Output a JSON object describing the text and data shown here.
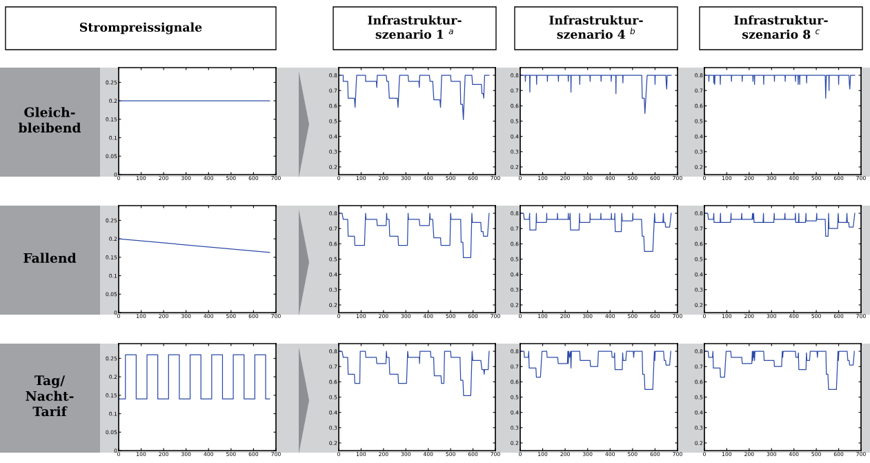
{
  "chart_data": [
    {
      "type": "line",
      "title": "Strompreissignale",
      "ylabel": "Gleich-\nbleibend",
      "xlim": [
        0,
        700
      ],
      "ylim": [
        0,
        0.29
      ],
      "xticks": [
        0,
        100,
        200,
        300,
        400,
        500,
        600,
        700
      ],
      "yticks": [
        0,
        0.05,
        0.1,
        0.15,
        0.2,
        0.25
      ],
      "grid": false,
      "series": [
        {
          "color": "#2b4aa8",
          "x": [
            0,
            672
          ],
          "values": [
            0.2,
            0.2
          ]
        }
      ]
    },
    {
      "type": "line",
      "title": "Infrastruktur-\nszenario 1 $^{a}$",
      "xlim": [
        0,
        700
      ],
      "ylim": [
        0.15,
        0.85
      ],
      "xticks": [
        0,
        100,
        200,
        300,
        400,
        500,
        600,
        700
      ],
      "yticks": [
        0.2,
        0.3,
        0.4,
        0.5,
        0.6,
        0.7,
        0.8
      ],
      "grid": false,
      "series": [
        {
          "color": "#2b4aa8",
          "x": [
            0,
            20,
            20,
            40,
            42,
            70,
            73,
            80,
            120,
            120,
            168,
            170,
            172,
            212,
            215,
            222,
            226,
            262,
            265,
            272,
            310,
            312,
            358,
            360,
            362,
            405,
            408,
            420,
            425,
            452,
            455,
            460,
            500,
            502,
            543,
            545,
            553,
            557,
            565,
            595,
            598,
            638,
            640,
            646,
            648,
            652,
            672
          ],
          "values": [
            0.8,
            0.8,
            0.76,
            0.76,
            0.65,
            0.65,
            0.59,
            0.8,
            0.8,
            0.76,
            0.76,
            0.72,
            0.8,
            0.8,
            0.76,
            0.76,
            0.65,
            0.65,
            0.59,
            0.8,
            0.8,
            0.76,
            0.76,
            0.72,
            0.8,
            0.8,
            0.76,
            0.76,
            0.64,
            0.64,
            0.59,
            0.8,
            0.8,
            0.76,
            0.76,
            0.61,
            0.61,
            0.51,
            0.8,
            0.8,
            0.74,
            0.74,
            0.68,
            0.68,
            0.65,
            0.8,
            0.8
          ]
        }
      ]
    },
    {
      "type": "line",
      "title": "Infrastruktur-\nszenario 4 $^{b}$",
      "xlim": [
        0,
        700
      ],
      "ylim": [
        0.15,
        0.85
      ],
      "xticks": [
        0,
        100,
        200,
        300,
        400,
        500,
        600,
        700
      ],
      "yticks": [
        0.2,
        0.3,
        0.4,
        0.5,
        0.6,
        0.7,
        0.8
      ],
      "grid": false,
      "series": [
        {
          "color": "#2b4aa8",
          "x": [
            0,
            22,
            23,
            24,
            42,
            43,
            44,
            72,
            73,
            74,
            120,
            121,
            122,
            169,
            170,
            171,
            213,
            214,
            215,
            225,
            226,
            227,
            264,
            265,
            266,
            310,
            311,
            312,
            359,
            360,
            361,
            404,
            405,
            406,
            425,
            426,
            427,
            456,
            457,
            458,
            541,
            543,
            552,
            555,
            565,
            599,
            600,
            601,
            648,
            650,
            652,
            654,
            672
          ],
          "values": [
            0.8,
            0.8,
            0.76,
            0.8,
            0.8,
            0.69,
            0.8,
            0.8,
            0.74,
            0.8,
            0.8,
            0.76,
            0.8,
            0.8,
            0.76,
            0.8,
            0.8,
            0.76,
            0.8,
            0.8,
            0.69,
            0.8,
            0.8,
            0.74,
            0.8,
            0.8,
            0.76,
            0.8,
            0.8,
            0.76,
            0.8,
            0.8,
            0.76,
            0.8,
            0.8,
            0.68,
            0.8,
            0.8,
            0.75,
            0.8,
            0.8,
            0.65,
            0.65,
            0.55,
            0.8,
            0.8,
            0.74,
            0.8,
            0.8,
            0.74,
            0.71,
            0.8,
            0.8
          ]
        }
      ]
    },
    {
      "type": "line",
      "title": "Infrastruktur-\nszenario 8 $^{c}$",
      "xlim": [
        0,
        700
      ],
      "ylim": [
        0.15,
        0.85
      ],
      "xticks": [
        0,
        100,
        200,
        300,
        400,
        500,
        600,
        700
      ],
      "yticks": [
        0.2,
        0.3,
        0.4,
        0.5,
        0.6,
        0.7,
        0.8
      ],
      "grid": false,
      "series": [
        {
          "color": "#2b4aa8",
          "x": [
            0,
            19,
            20,
            21,
            41,
            42,
            44,
            46,
            47,
            70,
            71,
            72,
            120,
            121,
            122,
            168,
            169,
            170,
            216,
            217,
            218,
            223,
            224,
            225,
            264,
            265,
            266,
            312,
            313,
            314,
            360,
            361,
            362,
            406,
            407,
            408,
            418,
            419,
            420,
            425,
            426,
            427,
            456,
            457,
            458,
            540,
            542,
            545,
            556,
            557,
            558,
            599,
            600,
            601,
            646,
            648,
            650,
            653,
            672
          ],
          "values": [
            0.8,
            0.8,
            0.76,
            0.8,
            0.8,
            0.75,
            0.8,
            0.74,
            0.8,
            0.8,
            0.74,
            0.8,
            0.8,
            0.76,
            0.8,
            0.8,
            0.76,
            0.8,
            0.8,
            0.76,
            0.8,
            0.8,
            0.74,
            0.8,
            0.8,
            0.74,
            0.8,
            0.8,
            0.76,
            0.8,
            0.8,
            0.76,
            0.8,
            0.8,
            0.76,
            0.8,
            0.8,
            0.74,
            0.8,
            0.8,
            0.74,
            0.8,
            0.8,
            0.75,
            0.8,
            0.8,
            0.65,
            0.8,
            0.8,
            0.7,
            0.8,
            0.8,
            0.74,
            0.8,
            0.8,
            0.74,
            0.71,
            0.8,
            0.8
          ]
        }
      ]
    },
    {
      "type": "line",
      "ylabel": "Fallend",
      "xlim": [
        0,
        700
      ],
      "ylim": [
        0,
        0.29
      ],
      "xticks": [
        0,
        100,
        200,
        300,
        400,
        500,
        600,
        700
      ],
      "yticks": [
        0,
        0.05,
        0.1,
        0.15,
        0.2,
        0.25
      ],
      "grid": false,
      "series": [
        {
          "color": "#2b4aa8",
          "x": [
            0,
            672
          ],
          "values": [
            0.2,
            0.163
          ]
        }
      ]
    },
    {
      "type": "line",
      "xlim": [
        0,
        700
      ],
      "ylim": [
        0.15,
        0.85
      ],
      "xticks": [
        0,
        100,
        200,
        300,
        400,
        500,
        600,
        700
      ],
      "yticks": [
        0.2,
        0.3,
        0.4,
        0.5,
        0.6,
        0.7,
        0.8
      ],
      "grid": false,
      "series": [
        {
          "color": "#2b4aa8",
          "x": [
            0,
            15,
            20,
            40,
            42,
            70,
            72,
            115,
            120,
            122,
            170,
            172,
            212,
            214,
            216,
            225,
            228,
            265,
            267,
            307,
            310,
            312,
            360,
            362,
            405,
            407,
            409,
            420,
            425,
            455,
            457,
            497,
            500,
            502,
            545,
            547,
            555,
            557,
            590,
            595,
            597,
            635,
            637,
            645,
            647,
            665,
            672
          ],
          "values": [
            0.8,
            0.8,
            0.76,
            0.76,
            0.65,
            0.65,
            0.59,
            0.59,
            0.8,
            0.76,
            0.76,
            0.72,
            0.72,
            0.8,
            0.76,
            0.76,
            0.65,
            0.65,
            0.59,
            0.59,
            0.8,
            0.76,
            0.76,
            0.72,
            0.72,
            0.8,
            0.76,
            0.76,
            0.64,
            0.64,
            0.59,
            0.59,
            0.8,
            0.76,
            0.76,
            0.61,
            0.61,
            0.51,
            0.51,
            0.8,
            0.74,
            0.74,
            0.68,
            0.68,
            0.65,
            0.65,
            0.8
          ]
        }
      ]
    },
    {
      "type": "line",
      "xlim": [
        0,
        700
      ],
      "ylim": [
        0.15,
        0.85
      ],
      "xticks": [
        0,
        100,
        200,
        300,
        400,
        500,
        600,
        700
      ],
      "yticks": [
        0.2,
        0.3,
        0.4,
        0.5,
        0.6,
        0.7,
        0.8
      ],
      "grid": false,
      "series": [
        {
          "color": "#2b4aa8",
          "x": [
            0,
            15,
            18,
            40,
            42,
            43,
            70,
            72,
            73,
            117,
            118,
            119,
            165,
            166,
            167,
            213,
            214,
            215,
            220,
            222,
            224,
            262,
            264,
            265,
            310,
            311,
            312,
            358,
            359,
            360,
            405,
            406,
            407,
            420,
            421,
            423,
            450,
            452,
            454,
            500,
            501,
            502,
            540,
            543,
            550,
            553,
            590,
            598,
            600,
            635,
            637,
            639,
            645,
            647,
            665,
            672
          ],
          "values": [
            0.8,
            0.8,
            0.76,
            0.76,
            0.8,
            0.69,
            0.69,
            0.8,
            0.74,
            0.74,
            0.8,
            0.76,
            0.76,
            0.8,
            0.76,
            0.76,
            0.8,
            0.76,
            0.76,
            0.8,
            0.69,
            0.69,
            0.8,
            0.74,
            0.74,
            0.8,
            0.76,
            0.76,
            0.8,
            0.76,
            0.76,
            0.8,
            0.76,
            0.76,
            0.8,
            0.68,
            0.68,
            0.8,
            0.75,
            0.75,
            0.8,
            0.76,
            0.76,
            0.65,
            0.65,
            0.55,
            0.55,
            0.8,
            0.74,
            0.74,
            0.8,
            0.74,
            0.74,
            0.71,
            0.71,
            0.8
          ]
        }
      ]
    },
    {
      "type": "line",
      "xlim": [
        0,
        700
      ],
      "ylim": [
        0.15,
        0.85
      ],
      "xticks": [
        0,
        100,
        200,
        300,
        400,
        500,
        600,
        700
      ],
      "yticks": [
        0.2,
        0.3,
        0.4,
        0.5,
        0.6,
        0.7,
        0.8
      ],
      "grid": false,
      "series": [
        {
          "color": "#2b4aa8",
          "x": [
            0,
            15,
            18,
            40,
            42,
            43,
            70,
            72,
            73,
            117,
            119,
            120,
            165,
            167,
            168,
            213,
            215,
            217,
            220,
            222,
            262,
            264,
            265,
            310,
            312,
            313,
            358,
            360,
            361,
            405,
            407,
            408,
            420,
            422,
            423,
            452,
            454,
            455,
            500,
            502,
            503,
            540,
            542,
            553,
            555,
            557,
            595,
            598,
            600,
            635,
            637,
            639,
            645,
            647,
            665,
            672
          ],
          "values": [
            0.8,
            0.8,
            0.76,
            0.76,
            0.8,
            0.74,
            0.74,
            0.8,
            0.74,
            0.74,
            0.8,
            0.76,
            0.76,
            0.8,
            0.76,
            0.76,
            0.8,
            0.76,
            0.8,
            0.74,
            0.74,
            0.8,
            0.74,
            0.74,
            0.8,
            0.76,
            0.76,
            0.8,
            0.76,
            0.76,
            0.8,
            0.74,
            0.74,
            0.8,
            0.74,
            0.74,
            0.8,
            0.75,
            0.75,
            0.8,
            0.76,
            0.76,
            0.65,
            0.65,
            0.8,
            0.7,
            0.7,
            0.8,
            0.74,
            0.74,
            0.8,
            0.74,
            0.74,
            0.71,
            0.71,
            0.8
          ]
        }
      ]
    },
    {
      "type": "line",
      "ylabel": "Tag/\nNacht-\nTarif",
      "xlim": [
        0,
        700
      ],
      "ylim": [
        0,
        0.29
      ],
      "xticks": [
        0,
        100,
        200,
        300,
        400,
        500,
        600,
        700
      ],
      "yticks": [
        0,
        0.05,
        0.1,
        0.15,
        0.2,
        0.25
      ],
      "grid": false,
      "series": [
        {
          "color": "#2b4aa8",
          "x": [
            0,
            30,
            30,
            78,
            78,
            126,
            126,
            174,
            174,
            222,
            222,
            270,
            270,
            318,
            318,
            366,
            366,
            414,
            414,
            462,
            462,
            510,
            510,
            558,
            558,
            606,
            606,
            654,
            654,
            672
          ],
          "values": [
            0.14,
            0.14,
            0.26,
            0.26,
            0.14,
            0.14,
            0.26,
            0.26,
            0.14,
            0.14,
            0.26,
            0.26,
            0.14,
            0.14,
            0.26,
            0.26,
            0.14,
            0.14,
            0.26,
            0.26,
            0.14,
            0.14,
            0.26,
            0.26,
            0.14,
            0.14,
            0.26,
            0.26,
            0.14,
            0.14
          ]
        }
      ]
    },
    {
      "type": "line",
      "xlim": [
        0,
        700
      ],
      "ylim": [
        0.15,
        0.85
      ],
      "xticks": [
        0,
        100,
        200,
        300,
        400,
        500,
        600,
        700
      ],
      "yticks": [
        0.2,
        0.3,
        0.4,
        0.5,
        0.6,
        0.7,
        0.8
      ],
      "grid": false,
      "series": [
        {
          "color": "#2b4aa8",
          "x": [
            0,
            15,
            20,
            40,
            42,
            70,
            72,
            94,
            96,
            119,
            121,
            168,
            170,
            211,
            213,
            215,
            225,
            228,
            265,
            267,
            303,
            308,
            311,
            360,
            361,
            363,
            410,
            412,
            424,
            427,
            457,
            459,
            470,
            473,
            500,
            502,
            542,
            545,
            555,
            558,
            590,
            596,
            599,
            635,
            640,
            648,
            650,
            652,
            668,
            672
          ],
          "values": [
            0.8,
            0.8,
            0.76,
            0.76,
            0.65,
            0.65,
            0.59,
            0.59,
            0.8,
            0.8,
            0.76,
            0.76,
            0.72,
            0.72,
            0.8,
            0.76,
            0.76,
            0.65,
            0.65,
            0.59,
            0.59,
            0.8,
            0.76,
            0.76,
            0.72,
            0.8,
            0.8,
            0.76,
            0.76,
            0.64,
            0.64,
            0.59,
            0.59,
            0.8,
            0.8,
            0.76,
            0.76,
            0.61,
            0.61,
            0.51,
            0.51,
            0.8,
            0.74,
            0.74,
            0.68,
            0.68,
            0.65,
            0.68,
            0.68,
            0.8
          ]
        }
      ]
    },
    {
      "type": "line",
      "xlim": [
        0,
        700
      ],
      "ylim": [
        0.15,
        0.85
      ],
      "xticks": [
        0,
        100,
        200,
        300,
        400,
        500,
        600,
        700
      ],
      "yticks": [
        0.2,
        0.3,
        0.4,
        0.5,
        0.6,
        0.7,
        0.8
      ],
      "grid": false,
      "series": [
        {
          "color": "#2b4aa8",
          "x": [
            0,
            17,
            19,
            36,
            38,
            40,
            70,
            72,
            90,
            97,
            118,
            120,
            167,
            169,
            210,
            212,
            214,
            216,
            220,
            224,
            226,
            228,
            265,
            267,
            311,
            313,
            345,
            348,
            407,
            409,
            418,
            420,
            422,
            454,
            456,
            458,
            470,
            473,
            503,
            505,
            507,
            543,
            545,
            552,
            555,
            590,
            597,
            599,
            601,
            638,
            641,
            647,
            649,
            665,
            670
          ],
          "values": [
            0.8,
            0.8,
            0.76,
            0.76,
            0.8,
            0.69,
            0.69,
            0.63,
            0.63,
            0.8,
            0.8,
            0.76,
            0.76,
            0.72,
            0.72,
            0.8,
            0.72,
            0.8,
            0.76,
            0.8,
            0.69,
            0.8,
            0.8,
            0.74,
            0.74,
            0.7,
            0.7,
            0.8,
            0.8,
            0.76,
            0.76,
            0.79,
            0.68,
            0.68,
            0.79,
            0.74,
            0.74,
            0.8,
            0.8,
            0.76,
            0.8,
            0.8,
            0.65,
            0.65,
            0.55,
            0.55,
            0.8,
            0.74,
            0.8,
            0.8,
            0.74,
            0.74,
            0.71,
            0.71,
            0.8
          ]
        }
      ]
    },
    {
      "type": "line",
      "xlim": [
        0,
        700
      ],
      "ylim": [
        0.15,
        0.85
      ],
      "xticks": [
        0,
        100,
        200,
        300,
        400,
        500,
        600,
        700
      ],
      "yticks": [
        0.2,
        0.3,
        0.4,
        0.5,
        0.6,
        0.7,
        0.8
      ],
      "grid": false,
      "series": [
        {
          "color": "#2b4aa8",
          "x": [
            0,
            17,
            19,
            36,
            38,
            40,
            70,
            72,
            90,
            97,
            118,
            120,
            167,
            169,
            212,
            214,
            216,
            218,
            220,
            222,
            224,
            226,
            265,
            267,
            311,
            313,
            345,
            348,
            350,
            352,
            407,
            409,
            418,
            420,
            422,
            454,
            456,
            458,
            470,
            473,
            503,
            505,
            507,
            543,
            545,
            552,
            555,
            590,
            597,
            599,
            601,
            638,
            641,
            647,
            649,
            665,
            670
          ],
          "values": [
            0.8,
            0.8,
            0.76,
            0.76,
            0.8,
            0.69,
            0.69,
            0.63,
            0.63,
            0.8,
            0.8,
            0.76,
            0.76,
            0.72,
            0.72,
            0.8,
            0.74,
            0.8,
            0.76,
            0.8,
            0.74,
            0.8,
            0.8,
            0.74,
            0.74,
            0.7,
            0.7,
            0.8,
            0.76,
            0.8,
            0.8,
            0.76,
            0.76,
            0.79,
            0.68,
            0.68,
            0.79,
            0.74,
            0.74,
            0.8,
            0.8,
            0.76,
            0.8,
            0.8,
            0.65,
            0.65,
            0.55,
            0.55,
            0.8,
            0.74,
            0.8,
            0.8,
            0.74,
            0.74,
            0.71,
            0.71,
            0.8
          ]
        }
      ]
    }
  ]
}
